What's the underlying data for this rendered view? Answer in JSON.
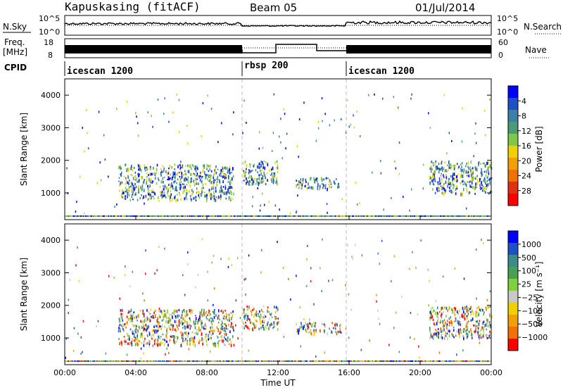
{
  "header": {
    "station": "Kapuskasing (fitACF)",
    "beam": "Beam 05",
    "date": "01/Jul/2014"
  },
  "panels": {
    "nsky": {
      "label": "N.Sky",
      "tick_hi": "10^5",
      "tick_lo": "10^0",
      "right_label": "N.Search"
    },
    "freq": {
      "label_1": "Freq.",
      "label_2": "[MHz]",
      "tick_hi": "18",
      "tick_lo": "8",
      "right_hi": "60",
      "right_lo": "0",
      "right_label": "Nave"
    },
    "cpid": {
      "label": "CPID",
      "segments": [
        {
          "name": "icescan 1200",
          "start": 0,
          "end": 10
        },
        {
          "name": "rbsp 200",
          "start": 10,
          "end": 16
        },
        {
          "name": "icescan 1200",
          "start": 16,
          "end": 24
        }
      ]
    }
  },
  "power_panel": {
    "ylabel": "Slant Range [km]",
    "yticks": [
      1000,
      2000,
      3000,
      4000
    ],
    "cbar_label": "Power [dB]",
    "cbar_ticks": [
      "4",
      "8",
      "12",
      "16",
      "20",
      "24",
      "28"
    ],
    "cbar_colors": [
      "#0000ff",
      "#1e50c8",
      "#3c7ea6",
      "#4a9a78",
      "#7ec84a",
      "#f0d000",
      "#f0a000",
      "#f07000",
      "#e03010",
      "#ff0000"
    ]
  },
  "velocity_panel": {
    "ylabel": "Slant Range [km]",
    "yticks": [
      1000,
      2000,
      3000,
      4000
    ],
    "cbar_label": "Velocity [m s⁻¹]",
    "cbar_ticks": [
      "1000",
      "500",
      "100",
      "25",
      "−25",
      "−100",
      "−500",
      "−1000"
    ],
    "cbar_colors": [
      "#0000ff",
      "#1e50c8",
      "#3c8a8a",
      "#4aa050",
      "#7ed040",
      "#c8c8c8",
      "#f0d000",
      "#f0a000",
      "#f07000",
      "#ff0000"
    ]
  },
  "xaxis": {
    "label": "Time UT",
    "ticks": [
      "00:00",
      "04:00",
      "08:00",
      "12:00",
      "16:00",
      "20:00",
      "00:00"
    ]
  },
  "chart_data": {
    "type": "heatmap",
    "x_range_hours": [
      0,
      24
    ],
    "y_range_km": [
      180,
      4500
    ],
    "mode_change_hours": [
      10,
      16
    ],
    "scatter_regions": [
      {
        "panel": "both",
        "t_start": 3.0,
        "t_end": 9.5,
        "range_km": [
          800,
          1900
        ],
        "description": "main backscatter band"
      },
      {
        "panel": "both",
        "t_start": 10.0,
        "t_end": 12.0,
        "range_km": [
          1300,
          2000
        ]
      },
      {
        "panel": "both",
        "t_start": 13.0,
        "t_end": 15.5,
        "range_km": [
          1150,
          1500
        ]
      },
      {
        "panel": "both",
        "t_start": 20.5,
        "t_end": 24.0,
        "range_km": [
          1000,
          2000
        ]
      }
    ]
  }
}
